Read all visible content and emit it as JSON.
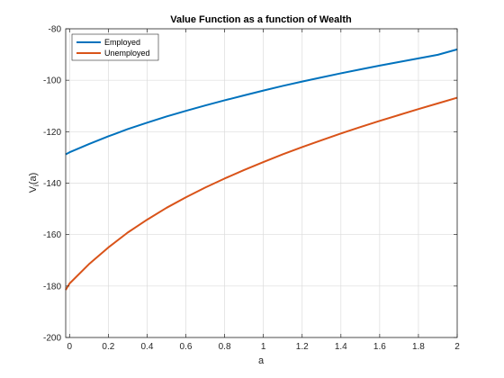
{
  "chart_data": {
    "type": "line",
    "title": "Value Function as a function of Wealth",
    "xlabel": "a",
    "ylabel": "V_i(a)",
    "ylabel_main": "V",
    "ylabel_sub": "i",
    "ylabel_tail": "(a)",
    "xlim": [
      -0.02,
      2.0
    ],
    "ylim": [
      -200,
      -80
    ],
    "xticks": [
      0,
      0.2,
      0.4,
      0.6,
      0.8,
      1,
      1.2,
      1.4,
      1.6,
      1.8,
      2
    ],
    "xtick_labels": [
      "0",
      "0.2",
      "0.4",
      "0.6",
      "0.8",
      "1",
      "1.2",
      "1.4",
      "1.6",
      "1.8",
      "2"
    ],
    "yticks": [
      -200,
      -180,
      -160,
      -140,
      -120,
      -100,
      -80
    ],
    "ytick_labels": [
      "-200",
      "-180",
      "-160",
      "-140",
      "-120",
      "-100",
      "-80"
    ],
    "grid": true,
    "legend_position": "top-left",
    "series": [
      {
        "name": "Employed",
        "color": "#0072BD",
        "x": [
          -0.02,
          0,
          0.1,
          0.2,
          0.3,
          0.4,
          0.5,
          0.6,
          0.7,
          0.8,
          0.9,
          1.0,
          1.1,
          1.2,
          1.3,
          1.4,
          1.5,
          1.6,
          1.7,
          1.8,
          1.9,
          2.0
        ],
        "y": [
          -128.8,
          -128.0,
          -124.8,
          -121.8,
          -119.0,
          -116.5,
          -114.1,
          -111.9,
          -109.8,
          -107.8,
          -105.9,
          -104.0,
          -102.2,
          -100.5,
          -98.9,
          -97.3,
          -95.8,
          -94.3,
          -92.9,
          -91.5,
          -90.1,
          -88.0
        ]
      },
      {
        "name": "Unemployed",
        "color": "#D95319",
        "x": [
          -0.02,
          0,
          0.1,
          0.2,
          0.3,
          0.4,
          0.5,
          0.6,
          0.7,
          0.8,
          0.9,
          1.0,
          1.1,
          1.2,
          1.3,
          1.4,
          1.5,
          1.6,
          1.7,
          1.8,
          1.9,
          2.0
        ],
        "y": [
          -181.5,
          -179.0,
          -171.5,
          -165.0,
          -159.2,
          -154.2,
          -149.6,
          -145.5,
          -141.7,
          -138.2,
          -134.9,
          -131.8,
          -128.8,
          -126.0,
          -123.3,
          -120.7,
          -118.2,
          -115.8,
          -113.5,
          -111.2,
          -109.0,
          -106.8
        ]
      }
    ]
  }
}
